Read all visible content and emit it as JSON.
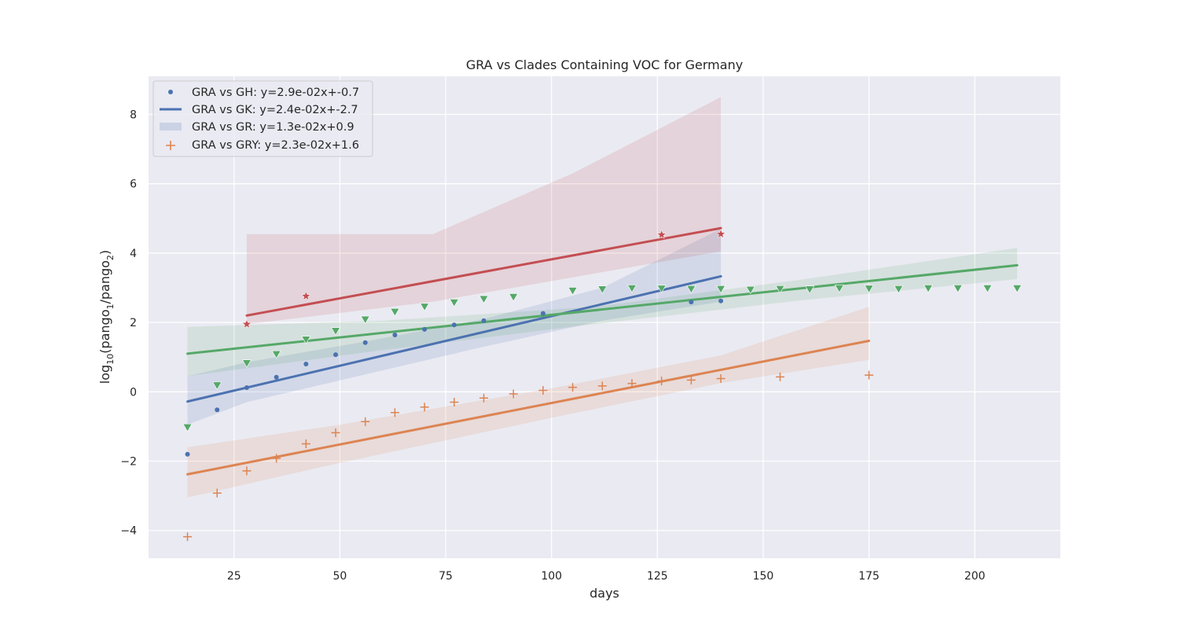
{
  "chart_data": {
    "type": "scatter",
    "title": "GRA vs Clades Containing VOC for Germany",
    "xlabel": "days",
    "ylabel": {
      "base": "log",
      "base_sub": "10",
      "open": "(pango",
      "sub1": "1",
      "mid": "/pango",
      "sub2": "2",
      "close": ")"
    },
    "xlim": [
      4.8,
      220.2
    ],
    "ylim": [
      -4.8,
      9.1
    ],
    "xticks": [
      25,
      50,
      75,
      100,
      125,
      150,
      175,
      200
    ],
    "yticks": [
      -4,
      -2,
      0,
      2,
      4,
      6,
      8
    ],
    "ytick_labels": [
      "−4",
      "−2",
      "0",
      "2",
      "4",
      "6",
      "8"
    ],
    "grid": true,
    "legend_position": "upper-left",
    "legend": [
      {
        "label": "GRA vs GH: y=2.9e-02x+-0.7",
        "symbol": "dot",
        "color": "#4c72b0"
      },
      {
        "label": "GRA vs GK: y=2.4e-02x+-2.7",
        "symbol": "line",
        "color": "#4c72b0"
      },
      {
        "label": "GRA vs GR: y=1.3e-02x+0.9",
        "symbol": "patch",
        "color": "#4c72b0"
      },
      {
        "label": "GRA vs GRY: y=2.3e-02x+1.6",
        "symbol": "plus",
        "color": "#dd8452"
      }
    ],
    "series": [
      {
        "color": "#4c72b0",
        "marker": "dot",
        "x": [
          14,
          21,
          28,
          35,
          42,
          49,
          56,
          63,
          70,
          77,
          84,
          98,
          133,
          140
        ],
        "y": [
          -1.8,
          -0.52,
          0.12,
          0.42,
          0.8,
          1.07,
          1.42,
          1.64,
          1.8,
          1.93,
          2.05,
          2.26,
          2.59,
          2.62
        ],
        "fit": {
          "x": [
            14,
            140
          ],
          "y": [
            -0.28,
            3.33
          ]
        },
        "band": {
          "x": [
            14,
            28,
            56,
            84,
            112,
            140
          ],
          "lower": [
            -0.95,
            -0.3,
            0.5,
            1.3,
            2.05,
            2.6
          ],
          "upper": [
            0.45,
            0.85,
            1.45,
            2.1,
            3.0,
            4.7
          ]
        }
      },
      {
        "color": "#dd8452",
        "marker": "plus",
        "x": [
          14,
          21,
          28,
          35,
          42,
          49,
          56,
          63,
          70,
          77,
          84,
          91,
          98,
          105,
          112,
          119,
          126,
          133,
          140,
          154,
          175
        ],
        "y": [
          -4.18,
          -2.92,
          -2.28,
          -1.92,
          -1.5,
          -1.18,
          -0.86,
          -0.6,
          -0.44,
          -0.3,
          -0.18,
          -0.06,
          0.04,
          0.13,
          0.17,
          0.24,
          0.31,
          0.34,
          0.38,
          0.43,
          0.48
        ],
        "fit": {
          "x": [
            14,
            175
          ],
          "y": [
            -2.38,
            1.47
          ]
        },
        "band": {
          "x": [
            14,
            50,
            100,
            140,
            175
          ],
          "lower": [
            -3.05,
            -2.05,
            -0.75,
            0.25,
            0.92
          ],
          "upper": [
            -1.6,
            -0.95,
            0.1,
            1.05,
            2.45
          ]
        }
      },
      {
        "color": "#55a868",
        "marker": "triangle",
        "x": [
          14,
          21,
          28,
          35,
          42,
          49,
          56,
          63,
          70,
          77,
          84,
          91,
          105,
          112,
          119,
          126,
          133,
          140,
          147,
          154,
          161,
          168,
          175,
          182,
          189,
          196,
          203,
          210
        ],
        "y": [
          -1.03,
          0.18,
          0.82,
          1.08,
          1.5,
          1.75,
          2.08,
          2.3,
          2.45,
          2.57,
          2.67,
          2.73,
          2.91,
          2.95,
          2.98,
          2.97,
          2.96,
          2.96,
          2.94,
          2.96,
          2.95,
          2.98,
          2.97,
          2.96,
          2.98,
          2.98,
          2.98,
          2.98
        ],
        "fit": {
          "x": [
            14,
            210
          ],
          "y": [
            1.1,
            3.65
          ]
        },
        "band": {
          "x": [
            14,
            60,
            110,
            160,
            210
          ],
          "lower": [
            0.45,
            1.2,
            1.95,
            2.65,
            3.25
          ],
          "upper": [
            1.87,
            2.05,
            2.45,
            3.25,
            4.15
          ]
        }
      },
      {
        "color": "#c44e52",
        "marker": "star",
        "x": [
          28,
          42,
          126,
          140
        ],
        "y": [
          1.95,
          2.76,
          4.53,
          4.55
        ],
        "fit": {
          "x": [
            28,
            140
          ],
          "y": [
            2.2,
            4.72
          ]
        },
        "band": {
          "x": [
            28,
            72,
            105,
            140
          ],
          "lower": [
            1.95,
            2.6,
            3.3,
            4.05
          ],
          "upper": [
            4.55,
            4.55,
            6.3,
            8.5
          ]
        }
      }
    ]
  }
}
